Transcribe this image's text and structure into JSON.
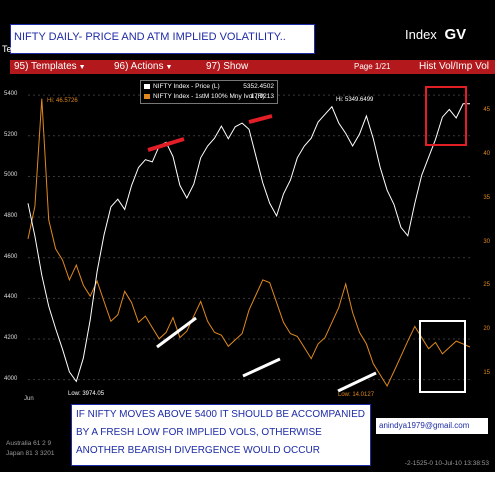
{
  "header": {
    "title": "NIFTY DAILY- PRICE AND ATM IMPLIED VOLATILITY..",
    "app_label": "Index",
    "app_code": "GV",
    "left_stub": "Te"
  },
  "toolbar": {
    "items": [
      "95) Templates",
      "96) Actions",
      "97) Show"
    ],
    "page_indicator": "Page 1/21",
    "right_label": "Hist Vol/Imp Vol"
  },
  "legend": {
    "price": {
      "label": "NIFTY Index - Price (L)",
      "value": "5352.4502",
      "color": "#ffffff"
    },
    "vol": {
      "label": "NIFTY Index - 1stM 100% Mny Ivol (R)",
      "value": "17.9213",
      "color": "#e0891e"
    }
  },
  "annotations": {
    "hi_vol": "Hi: 46.5726",
    "hi_price": "Hi: 5349.6499",
    "low_price": "Low: 3974.05",
    "low_vol": "Low: 14.0127"
  },
  "x_label": "Jun",
  "note": {
    "lines": [
      "IF NIFTY MOVES ABOVE 5400 IT SHOULD BE ACCOMPANIED",
      "BY A FRESH LOW FOR IMPLIED VOLS, OTHERWISE",
      "ANOTHER BEARISH DIVERGENCE WOULD OCCUR"
    ]
  },
  "email": "anindya1979@gmail.com",
  "footer": {
    "line1": "Australia 61 2 9",
    "line2": "Japan 81 3 3201",
    "right": "-2-1525-0 10-Jul-10 13:38:53"
  },
  "colors": {
    "price": "#ffffff",
    "vol": "#e0891e",
    "toolbar": "#b3191c",
    "text_blue": "#1d2ba6",
    "marker": "#e41e26"
  },
  "chart_data": {
    "type": "line",
    "x_tick_labels": [
      "Jun"
    ],
    "series": [
      {
        "name": "NIFTY Index - Price (L)",
        "y_axis": "left",
        "values": [
          4850,
          4700,
          4520,
          4380,
          4240,
          4150,
          4050,
          3974,
          4100,
          4300,
          4550,
          4700,
          4850,
          4900,
          4820,
          4950,
          5050,
          5100,
          5060,
          5150,
          5180,
          5080,
          4950,
          4900,
          4980,
          5080,
          5150,
          5200,
          5230,
          5180,
          5250,
          5280,
          5220,
          5100,
          4980,
          4850,
          4800,
          4920,
          5000,
          5080,
          5150,
          5200,
          5250,
          5300,
          5349,
          5280,
          5200,
          5150,
          5220,
          5280,
          5180,
          5050,
          4950,
          4850,
          4750,
          4720,
          4850,
          5000,
          5100,
          5200,
          5280,
          5330,
          5300,
          5340,
          5352
        ]
      },
      {
        "name": "NIFTY Index - 1stM 100% Mny Ivol (R)",
        "y_axis": "right",
        "values": [
          30,
          34,
          46.57,
          33,
          29,
          28,
          26,
          27,
          25,
          24,
          26,
          23,
          21,
          22,
          24,
          23,
          21,
          22,
          20,
          19,
          20,
          21,
          19,
          20,
          22,
          23,
          21,
          20,
          19,
          18,
          19,
          20,
          22,
          24,
          26,
          25,
          23,
          21,
          20,
          19,
          18,
          17,
          18,
          19,
          21,
          23,
          25,
          22,
          20,
          18,
          16,
          15,
          14.01,
          15,
          17,
          19,
          20,
          19,
          18,
          19,
          17,
          18,
          19,
          18,
          17.92
        ]
      }
    ],
    "left_axis": {
      "ticks": [
        4000,
        4200,
        4400,
        4600,
        4800,
        5000,
        5200,
        5400
      ],
      "range": [
        3900,
        5450
      ]
    },
    "right_axis": {
      "ticks": [
        15,
        20,
        25,
        30,
        35,
        40,
        45
      ],
      "range": [
        12,
        48
      ]
    }
  }
}
